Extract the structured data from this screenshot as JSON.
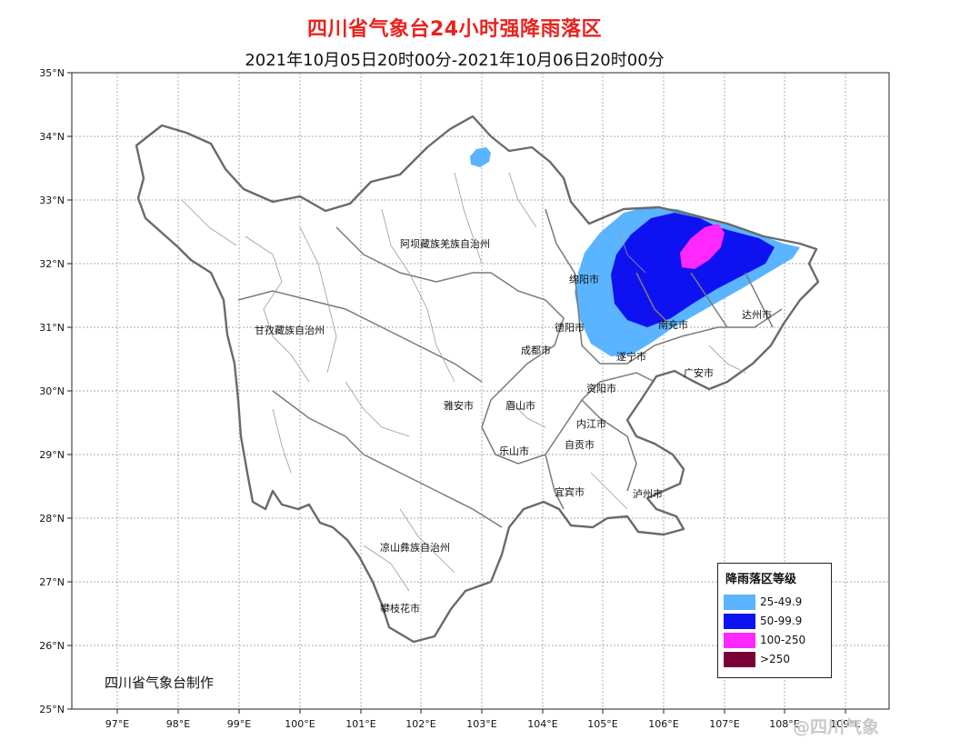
{
  "title": "四川省气象台24小时强降雨落区",
  "subtitle": "2021年10月05日20时00分-2021年10月06日20时00分",
  "axes": {
    "lat_ticks": [
      "35°N",
      "34°N",
      "33°N",
      "32°N",
      "31°N",
      "30°N",
      "29°N",
      "28°N",
      "27°N",
      "26°N",
      "25°N"
    ],
    "lon_ticks": [
      "97°E",
      "98°E",
      "99°E",
      "100°E",
      "101°E",
      "102°E",
      "103°E",
      "104°E",
      "105°E",
      "106°E",
      "107°E",
      "108°E",
      "109°E"
    ]
  },
  "region_labels": [
    "阿坝藏族羌族自治州",
    "甘孜藏族自治州",
    "凉山彝族自治州"
  ],
  "city_labels": [
    "绵阳市",
    "德阳市",
    "成都市",
    "南充市",
    "遂宁市",
    "广安市",
    "达州市",
    "资阳市",
    "雅安市",
    "眉山市",
    "内江市",
    "自贡市",
    "乐山市",
    "宜宾市",
    "泸州市",
    "攀枝花市"
  ],
  "legend": {
    "title": "降雨落区等级",
    "items": [
      {
        "label": "25-49.9",
        "color": "#5ab4ff"
      },
      {
        "label": "50-99.9",
        "color": "#0f12f0"
      },
      {
        "label": "100-250",
        "color": "#ff28ff"
      },
      {
        "label": ">250",
        "color": "#7a0038"
      }
    ]
  },
  "producer": "四川省气象台制作",
  "watermark": "@四川气象",
  "colors": {
    "title": "#e8231f",
    "grid": "#8a8a8a",
    "boundary": "#6a6a6a"
  }
}
